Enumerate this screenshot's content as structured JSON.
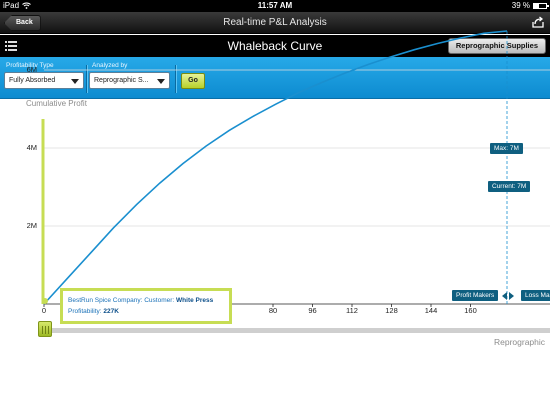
{
  "status_bar": {
    "device": "iPad",
    "time": "11:57 AM",
    "battery": "39 %",
    "battery_level": 0.39
  },
  "nav_bar": {
    "back_label": "Back",
    "title": "Real-time P&L Analysis"
  },
  "sub_header": {
    "chart_title": "Whaleback Curve",
    "category_button": "Reprographic Supplies"
  },
  "filters": {
    "profitability_type": {
      "label": "Profitability Type",
      "value": "Fully Absorbed"
    },
    "analyzed_by": {
      "label": "Analyzed by",
      "value": "Reprographic S..."
    },
    "go_label": "Go"
  },
  "chart": {
    "y_axis_title": "Cumulative Profit",
    "x_axis_title": "Reprographic",
    "y_ticks": [
      "2M",
      "4M",
      "6M"
    ],
    "x_ticks": [
      "0",
      "80",
      "96",
      "112",
      "128",
      "144",
      "160"
    ],
    "max_label": "Max: 7M",
    "current_label": "Current: 7M",
    "profit_makers_label": "Profit Makers",
    "loss_makers_label": "Loss Ma",
    "tooltip": {
      "line1_prefix": "BestRun Spice Company: Customer:",
      "line1_value": "White Press",
      "line2_prefix": "Profitability:",
      "line2_value": "227K"
    },
    "colors": {
      "curve": "#1a8fcf",
      "accent": "#c7dd54",
      "label_bg": "#0f5f80"
    }
  },
  "chart_data": {
    "type": "line",
    "x": [
      0,
      8,
      16,
      24,
      32,
      40,
      48,
      56,
      64,
      72,
      80,
      88,
      96,
      104,
      112,
      120,
      128,
      136,
      144,
      152,
      160
    ],
    "series": [
      {
        "values": [
          0,
          0.65,
          1.3,
          1.95,
          2.55,
          3.1,
          3.6,
          4.05,
          4.45,
          4.8,
          5.12,
          5.42,
          5.68,
          5.92,
          6.14,
          6.34,
          6.52,
          6.68,
          6.82,
          6.94,
          7.0
        ]
      }
    ],
    "xlabel": "Reprographic",
    "ylabel": "Cumulative Profit",
    "y_unit": "M",
    "ylim": [
      0,
      7.6
    ],
    "max_value": 7,
    "current_value": 7,
    "current_x": 160,
    "grid": true
  }
}
